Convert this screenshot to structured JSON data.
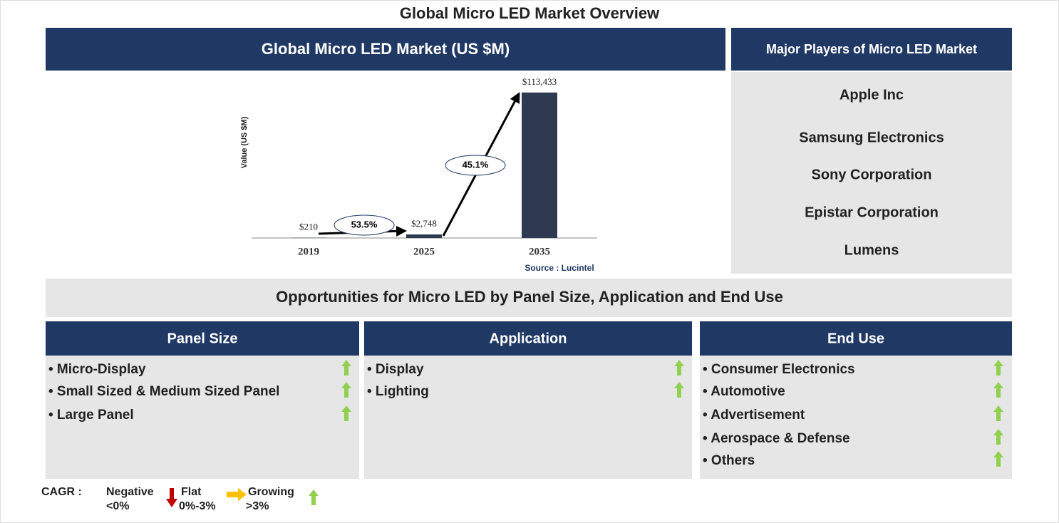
{
  "title": "Global Micro LED Market Overview",
  "chart_data": {
    "type": "bar",
    "title": "Global Micro LED Market (US $M)",
    "ylabel": "Value (US $M)",
    "categories": [
      "2019",
      "2025",
      "2035"
    ],
    "values": [
      210,
      2748,
      113433
    ],
    "value_labels": [
      "$210",
      "$2,748",
      "$113,433"
    ],
    "color": "#2e3a4f",
    "ylim": [
      0,
      120000
    ],
    "annotations": [
      "53.5%",
      "45.1%"
    ],
    "source": "Source : Lucintel"
  },
  "players": {
    "title": "Major Players of Micro LED Market",
    "items": [
      "Apple Inc",
      "Samsung Electronics",
      "Sony Corporation",
      "Epistar Corporation",
      "Lumens"
    ]
  },
  "opportunities": {
    "title": "Opportunities for Micro LED by Panel Size, Application and End Use",
    "columns": [
      {
        "title": "Panel Size",
        "items": [
          "• Micro-Display",
          "• Small Sized & Medium Sized Panel",
          "• Large Panel"
        ]
      },
      {
        "title": "Application",
        "items": [
          "• Display",
          "• Lighting"
        ]
      },
      {
        "title": "End Use",
        "items": [
          "• Consumer Electronics",
          "• Automotive",
          "• Advertisement",
          "• Aerospace & Defense",
          "• Others"
        ]
      }
    ]
  },
  "legend": {
    "title": "CAGR :",
    "items": [
      {
        "label": "Negative",
        "range": "<0%"
      },
      {
        "label": "Flat",
        "range": "0%-3%"
      },
      {
        "label": "Growing",
        "range": ">3%"
      }
    ]
  }
}
